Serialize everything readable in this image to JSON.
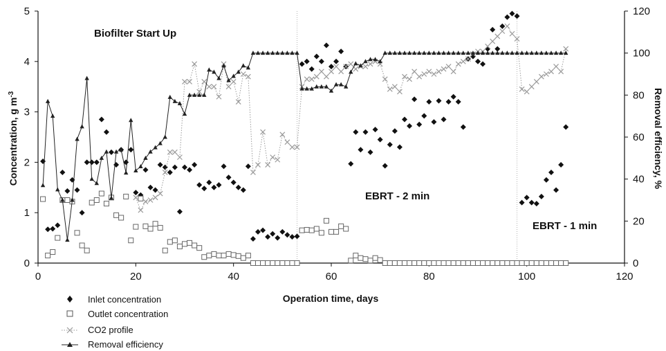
{
  "chart_data": {
    "type": "scatter",
    "title": "",
    "xlabel": "Operation time, days",
    "ylabel_left": "Concentration, g m",
    "ylabel_left_sup": "-3",
    "ylabel_right": "Removal efficiency, %",
    "xlim": [
      0,
      120
    ],
    "ylim_left": [
      0,
      5
    ],
    "ylim_right": [
      0,
      120
    ],
    "x_ticks": [
      "0",
      "20",
      "40",
      "60",
      "80",
      "100",
      "120"
    ],
    "y_left_ticks": [
      "0",
      "1",
      "2",
      "3",
      "4",
      "5"
    ],
    "y_right_ticks": [
      "0",
      "20",
      "40",
      "60",
      "80",
      "100",
      "120"
    ],
    "grid": false,
    "legend_position": "bottom-left",
    "annotations": {
      "startup": "Biofilter Start Up",
      "ebrt2": "EBRT - 2 min",
      "ebrt1": "EBRT - 1 min"
    },
    "phase_boundaries_days": [
      53,
      98
    ],
    "series": [
      {
        "name": "Inlet concentration",
        "axis": "left",
        "marker": "diamond",
        "color": "#111111",
        "x": [
          1,
          2,
          3,
          4,
          5,
          6,
          7,
          8,
          9,
          10,
          11,
          12,
          13,
          14,
          15,
          16,
          17,
          18,
          19,
          20,
          21,
          22,
          23,
          24,
          25,
          26,
          27,
          28,
          29,
          30,
          31,
          32,
          33,
          34,
          35,
          36,
          37,
          38,
          39,
          40,
          41,
          42,
          43,
          44,
          45,
          46,
          47,
          48,
          49,
          50,
          51,
          52,
          53,
          54,
          55,
          56,
          57,
          58,
          59,
          60,
          61,
          62,
          63,
          64,
          65,
          66,
          67,
          68,
          69,
          70,
          71,
          72,
          73,
          74,
          75,
          76,
          77,
          78,
          79,
          80,
          81,
          82,
          83,
          84,
          85,
          86,
          87,
          88,
          89,
          90,
          91,
          92,
          93,
          94,
          95,
          96,
          97,
          98,
          99,
          100,
          101,
          102,
          103,
          104,
          105,
          106,
          107,
          108
        ],
        "y": [
          2.02,
          0.67,
          0.68,
          0.75,
          1.8,
          1.43,
          1.65,
          1.45,
          1.0,
          2.0,
          2.0,
          2.0,
          2.85,
          2.6,
          2.2,
          1.95,
          2.25,
          2.0,
          2.25,
          1.4,
          1.35,
          1.85,
          1.5,
          1.45,
          1.95,
          1.9,
          1.8,
          1.9,
          1.02,
          1.9,
          1.85,
          1.95,
          1.55,
          1.48,
          1.6,
          1.5,
          1.55,
          1.92,
          1.7,
          1.6,
          1.5,
          1.45,
          1.92,
          0.48,
          0.62,
          0.65,
          0.52,
          0.58,
          0.5,
          0.62,
          0.56,
          0.52,
          0.53,
          3.95,
          4.0,
          3.85,
          4.1,
          4.0,
          4.32,
          3.9,
          4.0,
          4.2,
          3.9,
          1.97,
          2.6,
          2.25,
          2.6,
          2.2,
          2.65,
          2.45,
          1.93,
          2.35,
          2.62,
          2.3,
          2.85,
          2.72,
          3.25,
          2.75,
          2.92,
          3.2,
          2.8,
          3.22,
          2.85,
          3.2,
          3.3,
          3.2,
          2.7,
          4.05,
          4.1,
          4.0,
          3.95,
          4.25,
          4.63,
          4.25,
          4.7,
          4.88,
          4.95,
          4.9,
          1.2,
          1.3,
          1.2,
          1.18,
          1.32,
          1.65,
          1.8,
          1.45,
          1.95,
          2.7
        ]
      },
      {
        "name": "Outlet concentration",
        "axis": "left",
        "marker": "square-open",
        "color": "#666666",
        "x": [
          1,
          2,
          3,
          4,
          5,
          6,
          7,
          8,
          9,
          10,
          11,
          12,
          13,
          14,
          15,
          16,
          17,
          18,
          19,
          20,
          21,
          22,
          23,
          24,
          25,
          26,
          27,
          28,
          29,
          30,
          31,
          32,
          33,
          34,
          35,
          36,
          37,
          38,
          39,
          40,
          41,
          42,
          43,
          44,
          45,
          46,
          47,
          48,
          49,
          50,
          51,
          52,
          53,
          54,
          55,
          56,
          57,
          58,
          59,
          60,
          61,
          62,
          63,
          64,
          65,
          66,
          67,
          68,
          69,
          70,
          71,
          72,
          73,
          74,
          75,
          76,
          77,
          78,
          79,
          80,
          81,
          82,
          83,
          84,
          85,
          86,
          87,
          88,
          89,
          90,
          91,
          92,
          93,
          94,
          95,
          96,
          97,
          98,
          99,
          100,
          101,
          102,
          103,
          104,
          105,
          106,
          107,
          108
        ],
        "y": [
          1.27,
          0.15,
          0.22,
          0.5,
          1.25,
          1.25,
          1.22,
          0.6,
          0.35,
          0.25,
          1.2,
          1.25,
          1.38,
          1.18,
          1.3,
          0.95,
          0.9,
          1.32,
          0.45,
          0.72,
          1.28,
          0.73,
          0.68,
          0.78,
          0.7,
          0.25,
          0.42,
          0.45,
          0.33,
          0.38,
          0.4,
          0.35,
          0.3,
          0.12,
          0.15,
          0.18,
          0.15,
          0.15,
          0.18,
          0.16,
          0.14,
          0.1,
          0.15,
          0.0,
          0.0,
          0.0,
          0.0,
          0.0,
          0.0,
          0.0,
          0.0,
          0.0,
          0.0,
          0.65,
          0.66,
          0.65,
          0.68,
          0.6,
          0.84,
          0.62,
          0.62,
          0.73,
          0.68,
          0.05,
          0.15,
          0.1,
          0.08,
          0.05,
          0.1,
          0.06,
          0.0,
          0.0,
          0.0,
          0.0,
          0.0,
          0.0,
          0.0,
          0.0,
          0.0,
          0.0,
          0.0,
          0.0,
          0.0,
          0.0,
          0.0,
          0.0,
          0.0,
          0.0,
          0.0,
          0.0,
          0.0,
          0.0,
          0.0,
          0.0,
          0.0,
          0.0,
          0.0,
          0.0,
          0.0,
          0.0,
          0.0,
          0.0,
          0.0,
          0.0,
          0.0,
          0.0,
          0.0,
          0.0
        ]
      },
      {
        "name": "CO2 profile",
        "axis": "left",
        "marker": "x",
        "line": "dotted",
        "color": "#9a9a9a",
        "x": [
          20,
          21,
          22,
          23,
          24,
          25,
          26,
          27,
          28,
          29,
          30,
          31,
          32,
          33,
          34,
          35,
          36,
          37,
          38,
          39,
          40,
          41,
          42,
          43,
          44,
          45,
          46,
          47,
          48,
          49,
          50,
          51,
          52,
          53,
          54,
          55,
          56,
          57,
          58,
          59,
          60,
          61,
          62,
          63,
          64,
          65,
          66,
          67,
          68,
          69,
          70,
          71,
          72,
          73,
          74,
          75,
          76,
          77,
          78,
          79,
          80,
          81,
          82,
          83,
          84,
          85,
          86,
          87,
          88,
          89,
          90,
          91,
          92,
          93,
          94,
          95,
          96,
          97,
          98,
          99,
          100,
          101,
          102,
          103,
          104,
          105,
          106,
          107,
          108
        ],
        "y": [
          1.3,
          1.05,
          1.22,
          1.25,
          1.3,
          1.38,
          1.8,
          2.2,
          2.2,
          2.1,
          3.6,
          3.6,
          3.95,
          3.4,
          3.6,
          3.5,
          3.5,
          3.3,
          3.95,
          3.5,
          3.6,
          3.2,
          3.75,
          3.7,
          1.8,
          1.95,
          2.6,
          1.95,
          2.1,
          2.05,
          2.55,
          2.4,
          2.3,
          2.3,
          3.5,
          3.65,
          3.65,
          3.7,
          3.8,
          3.7,
          3.8,
          3.9,
          3.8,
          3.9,
          3.95,
          3.85,
          3.9,
          3.9,
          3.95,
          4.0,
          3.95,
          3.65,
          3.45,
          3.5,
          3.4,
          3.7,
          3.65,
          3.8,
          3.7,
          3.75,
          3.8,
          3.75,
          3.8,
          3.85,
          3.9,
          3.8,
          3.95,
          4.0,
          4.05,
          4.15,
          4.2,
          4.2,
          4.3,
          4.4,
          4.5,
          4.6,
          4.7,
          4.55,
          4.45,
          3.45,
          3.4,
          3.5,
          3.6,
          3.7,
          3.75,
          3.8,
          3.9,
          3.8,
          4.25
        ]
      },
      {
        "name": "Removal efficiency",
        "axis": "right",
        "marker": "triangle",
        "line": "solid",
        "color": "#222222",
        "x": [
          1,
          2,
          3,
          4,
          5,
          6,
          7,
          8,
          9,
          10,
          11,
          12,
          13,
          14,
          15,
          16,
          17,
          18,
          19,
          20,
          21,
          22,
          23,
          24,
          25,
          26,
          27,
          28,
          29,
          30,
          31,
          32,
          33,
          34,
          35,
          36,
          37,
          38,
          39,
          40,
          41,
          42,
          43,
          44,
          45,
          46,
          47,
          48,
          49,
          50,
          51,
          52,
          53,
          54,
          55,
          56,
          57,
          58,
          59,
          60,
          61,
          62,
          63,
          64,
          65,
          66,
          67,
          68,
          69,
          70,
          71,
          72,
          73,
          74,
          75,
          76,
          77,
          78,
          79,
          80,
          81,
          82,
          83,
          84,
          85,
          86,
          87,
          88,
          89,
          90,
          91,
          92,
          93,
          94,
          95,
          96,
          97,
          98,
          99,
          100,
          101,
          102,
          103,
          104,
          105,
          106,
          107,
          108
        ],
        "y": [
          37,
          77,
          70,
          35,
          30,
          11,
          30,
          59,
          65,
          88,
          40,
          38,
          50,
          53,
          31,
          53,
          54,
          43,
          68,
          44,
          46,
          50,
          53,
          55,
          57,
          60,
          79,
          77,
          76,
          71,
          80,
          80,
          80,
          80,
          92,
          91,
          88,
          94,
          87,
          89,
          91,
          94,
          93,
          100,
          100,
          100,
          100,
          100,
          100,
          100,
          100,
          100,
          100,
          83,
          83,
          83,
          84,
          84,
          84,
          82,
          85,
          85,
          84,
          91,
          95,
          94,
          96,
          97,
          97,
          96,
          100,
          100,
          100,
          100,
          100,
          100,
          100,
          100,
          100,
          100,
          100,
          100,
          100,
          100,
          100,
          100,
          100,
          100,
          100,
          100,
          100,
          100,
          100,
          100,
          100,
          100,
          100,
          100,
          100,
          100,
          100,
          100,
          100,
          100,
          100,
          100,
          100,
          100
        ]
      }
    ]
  }
}
